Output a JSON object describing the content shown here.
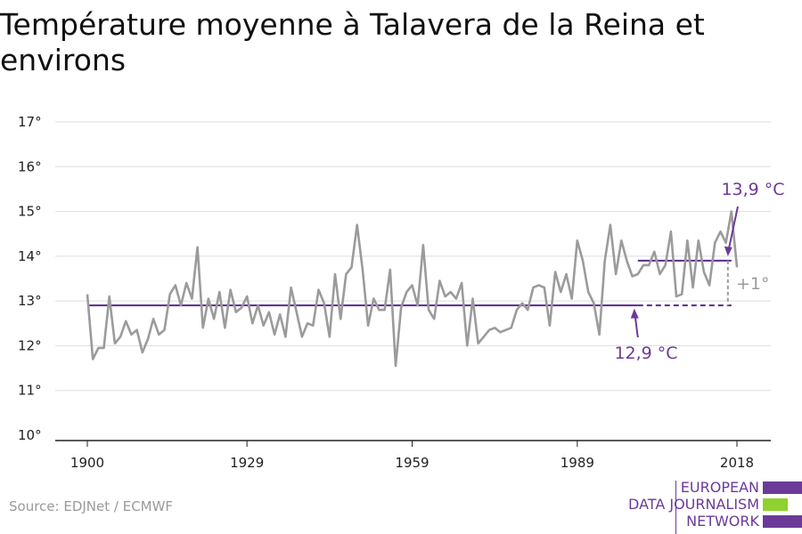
{
  "title": "Température moyenne à Talavera de la Reina et environs",
  "source": "Source: EDJNet / ECMWF",
  "logo": {
    "line1": "EUROPEAN",
    "line2": "DATA JOURNALISM",
    "line3": "NETWORK",
    "colors": {
      "purple": "#6b3a99",
      "green": "#8fd12f"
    }
  },
  "colors": {
    "series": "#9b9b9b",
    "reference": "#5b2a8c",
    "annotation": "#6b3a99",
    "diff": "#9b9b9b",
    "grid": "#dddddd",
    "axis": "#222222"
  },
  "chart_data": {
    "type": "line",
    "title": "Température moyenne à Talavera de la Reina et environs",
    "xlabel": "",
    "ylabel": "",
    "xlim": [
      1900,
      2018
    ],
    "ylim": [
      10,
      17
    ],
    "x_ticks": [
      1900,
      1929,
      1959,
      1989,
      2018
    ],
    "y_ticks": [
      10,
      11,
      12,
      13,
      14,
      15,
      16,
      17
    ],
    "y_tick_suffix": "°",
    "grid": "horizontal",
    "series": [
      {
        "x": [
          1900,
          1901,
          1902,
          1903,
          1904,
          1905,
          1906,
          1907,
          1908,
          1909,
          1910,
          1911,
          1912,
          1913,
          1914,
          1915,
          1916,
          1917,
          1918,
          1919,
          1920,
          1921,
          1922,
          1923,
          1924,
          1925,
          1926,
          1927,
          1928,
          1929,
          1930,
          1931,
          1932,
          1933,
          1934,
          1935,
          1936,
          1937,
          1938,
          1939,
          1940,
          1941,
          1942,
          1943,
          1944,
          1945,
          1946,
          1947,
          1948,
          1949,
          1950,
          1951,
          1952,
          1953,
          1954,
          1955,
          1956,
          1957,
          1958,
          1959,
          1960,
          1961,
          1962,
          1963,
          1964,
          1965,
          1966,
          1967,
          1968,
          1969,
          1970,
          1971,
          1972,
          1973,
          1974,
          1975,
          1976,
          1977,
          1978,
          1979,
          1980,
          1981,
          1982,
          1983,
          1984,
          1985,
          1986,
          1987,
          1988,
          1989,
          1990,
          1991,
          1992,
          1993,
          1994,
          1995,
          1996,
          1997,
          1998,
          1999,
          2000,
          2001,
          2002,
          2003,
          2004,
          2005,
          2006,
          2007,
          2008,
          2009,
          2010,
          2011,
          2012,
          2013,
          2014,
          2015,
          2016,
          2017,
          2018
        ],
        "values": [
          13.15,
          11.7,
          11.95,
          11.95,
          13.1,
          12.05,
          12.2,
          12.55,
          12.25,
          12.35,
          11.85,
          12.15,
          12.6,
          12.25,
          12.35,
          13.15,
          13.35,
          12.9,
          13.4,
          13.05,
          14.2,
          12.4,
          13.05,
          12.6,
          13.2,
          12.4,
          13.25,
          12.75,
          12.85,
          13.1,
          12.5,
          12.9,
          12.45,
          12.75,
          12.25,
          12.7,
          12.2,
          13.3,
          12.75,
          12.2,
          12.5,
          12.45,
          13.25,
          12.95,
          12.2,
          13.6,
          12.6,
          13.6,
          13.75,
          14.7,
          13.7,
          12.45,
          13.05,
          12.8,
          12.8,
          13.7,
          11.55,
          12.85,
          13.2,
          13.35,
          12.9,
          14.25,
          12.8,
          12.6,
          13.45,
          13.1,
          13.2,
          13.05,
          13.4,
          12.0,
          13.05,
          12.05,
          12.2,
          12.35,
          12.4,
          12.3,
          12.35,
          12.4,
          12.8,
          12.95,
          12.8,
          13.3,
          13.35,
          13.3,
          12.45,
          13.65,
          13.2,
          13.6,
          13.05,
          14.35,
          13.9,
          13.2,
          12.95,
          12.25,
          13.9,
          14.7,
          13.6,
          14.35,
          13.9,
          13.55,
          13.6,
          13.8,
          13.8,
          14.1,
          13.6,
          13.8,
          14.55,
          13.1,
          13.15,
          14.35,
          13.3,
          14.35,
          13.65,
          13.35,
          14.3,
          14.55,
          14.3,
          15.0,
          13.75
        ]
      }
    ],
    "reference_lines": [
      {
        "label": "12,9 °C",
        "value": 12.9,
        "x_start": 1900,
        "x_solid_end": 2000,
        "x_end": 2017,
        "dashed_after": 2000
      },
      {
        "label": "13,9 °C",
        "value": 13.9,
        "x_start": 2000,
        "x_end": 2017
      }
    ],
    "annotations": [
      {
        "text": "13,9 °C",
        "points_to": {
          "x": 2017,
          "y": 14.0
        }
      },
      {
        "text": "12,9 °C",
        "points_to": {
          "x": 2000,
          "y": 12.85
        }
      },
      {
        "text": "+1°",
        "at": {
          "x": 2017,
          "y": 13.4
        }
      }
    ]
  }
}
